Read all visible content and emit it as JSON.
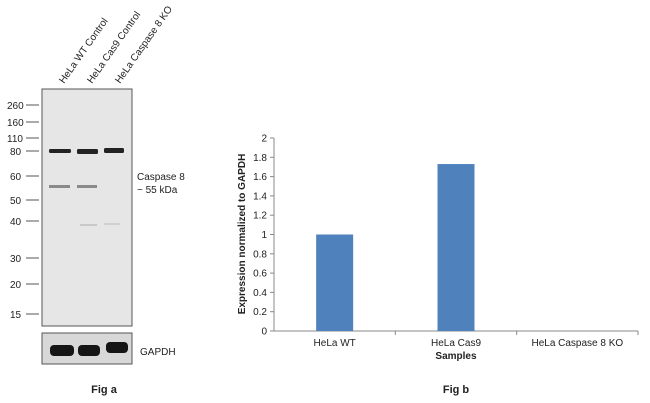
{
  "fig_a": {
    "caption": "Fig a",
    "lanes": [
      "HeLa WT Control",
      "HeLa Cas9 Control",
      "HeLa Caspase 8 KO"
    ],
    "markers": [
      "260",
      "160",
      "110",
      "80",
      "60",
      "50",
      "40",
      "30",
      "20",
      "15"
    ],
    "band_label_line1": "Caspase 8",
    "band_label_line2": "~ 55 kDa",
    "loading_control": "GAPDH"
  },
  "chart_data": {
    "type": "bar",
    "title": "Fig b",
    "categories": [
      "HeLa WT",
      "HeLa Cas9",
      "HeLa Caspase 8 KO"
    ],
    "values": [
      1.0,
      1.73,
      0
    ],
    "xlabel": "Samples",
    "ylabel": "Expression  normalized to GAPDH",
    "ylim": [
      0,
      2
    ],
    "yticks": [
      "0",
      "0.2",
      "0.4",
      "0.6",
      "0.8",
      "1",
      "1.2",
      "1.4",
      "1.6",
      "1.8",
      "2"
    ],
    "grid": false,
    "bar_color": "#4f81bd"
  }
}
